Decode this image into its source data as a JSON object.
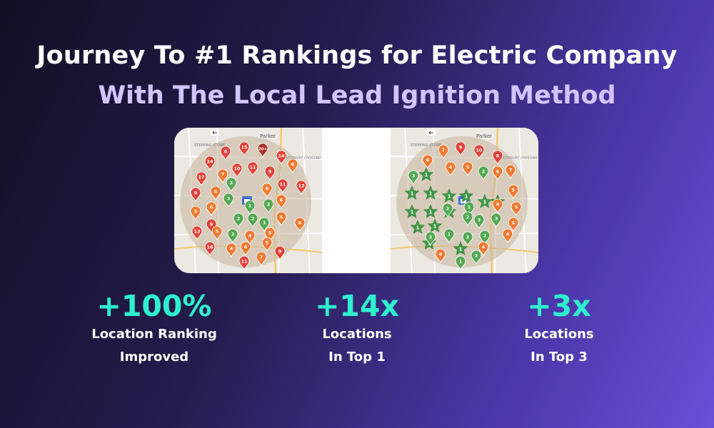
{
  "headline": {
    "line1": "Journey To #1 Rankings for Electric Company",
    "line2": "With The Local Lead Ignition Method",
    "accent_color": "#d2c4ff"
  },
  "maps": {
    "labels": [
      "Parker",
      "STEPPING STONE",
      "CANTERBURY CROSSING"
    ],
    "before": {
      "ranks": [
        "8",
        "15",
        "20+",
        "14",
        "14",
        "7",
        "10",
        "11",
        "9",
        "6",
        "17",
        "5",
        "3",
        "12",
        "11",
        "9",
        "6",
        "3",
        "6",
        "1",
        "2",
        "6",
        "5",
        "9",
        "5",
        "2",
        "2",
        "3",
        "6",
        "12",
        "5",
        "2",
        "4",
        "5",
        "16",
        "4",
        "6",
        "5",
        "11",
        "7",
        "9"
      ]
    },
    "after": {
      "ranks": [
        "7",
        "9",
        "10",
        "6",
        "8",
        "4",
        "5",
        "2",
        "6",
        "7",
        "3",
        "5",
        "5",
        "1",
        "2",
        "2",
        "4",
        "3",
        "5",
        "1",
        "3",
        "4",
        "2",
        "2",
        "2",
        "4",
        "6",
        "1",
        "3"
      ],
      "star_label": "1"
    }
  },
  "colors": {
    "red": "#e0443a",
    "orange": "#ef7a32",
    "green": "#54a852",
    "star": "#3f9a45"
  },
  "stats": [
    {
      "value": "+100%",
      "label_line1": "Location Ranking",
      "label_line2": "Improved"
    },
    {
      "value": "+14x",
      "label_line1": "Locations",
      "label_line2": "In Top 1"
    },
    {
      "value": "+3x",
      "label_line1": "Locations",
      "label_line2": "In Top 3"
    }
  ]
}
